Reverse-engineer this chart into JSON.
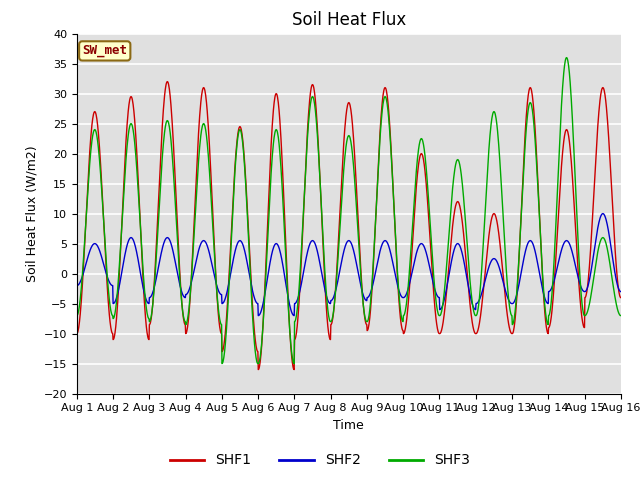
{
  "title": "Soil Heat Flux",
  "xlabel": "Time",
  "ylabel": "Soil Heat Flux (W/m2)",
  "ylim": [
    -20,
    40
  ],
  "xlim": [
    0,
    15
  ],
  "xtick_labels": [
    "Aug 1",
    "Aug 2",
    "Aug 3",
    "Aug 4",
    "Aug 5",
    "Aug 6",
    "Aug 7",
    "Aug 8",
    "Aug 9",
    "Aug 10",
    "Aug 11",
    "Aug 12",
    "Aug 13",
    "Aug 14",
    "Aug 15",
    "Aug 16"
  ],
  "ytick_values": [
    -20,
    -15,
    -10,
    -5,
    0,
    5,
    10,
    15,
    20,
    25,
    30,
    35,
    40
  ],
  "color_shf1": "#cc0000",
  "color_shf2": "#0000cc",
  "color_shf3": "#00aa00",
  "legend_label1": "SHF1",
  "legend_label2": "SHF2",
  "legend_label3": "SHF3",
  "station_label": "SW_met",
  "bg_color": "#e0e0e0",
  "grid_color": "white",
  "title_fontsize": 12,
  "axis_label_fontsize": 9,
  "tick_fontsize": 8,
  "num_days": 15,
  "points_per_day": 96,
  "shf1_amplitudes": [
    27,
    29.5,
    32,
    31,
    24.5,
    30,
    31.5,
    28.5,
    31,
    20,
    12,
    10,
    31,
    24,
    31
  ],
  "shf1_mins": [
    -10,
    -11,
    -8.5,
    -10,
    -13,
    -16,
    -11,
    -8.5,
    -9.5,
    -10,
    -10,
    -10,
    -10,
    -9,
    -4
  ],
  "shf2_amplitudes": [
    5,
    6,
    6,
    5.5,
    5.5,
    5,
    5.5,
    5.5,
    5.5,
    5,
    5,
    2.5,
    5.5,
    5.5,
    10
  ],
  "shf2_mins": [
    -2,
    -5,
    -4,
    -3.5,
    -5,
    -7,
    -5,
    -4.5,
    -4,
    -4,
    -6,
    -5,
    -5,
    -3,
    -3
  ],
  "shf3_amplitudes": [
    24,
    25,
    25.5,
    25,
    24,
    24,
    29.5,
    23,
    29.5,
    22.5,
    19,
    27,
    28.5,
    36,
    6
  ],
  "shf3_mins": [
    -7,
    -7.5,
    -8,
    -8.5,
    -15,
    -15,
    -8,
    -8,
    -8,
    -7,
    -7,
    -7,
    -8.5,
    -7,
    -7
  ]
}
